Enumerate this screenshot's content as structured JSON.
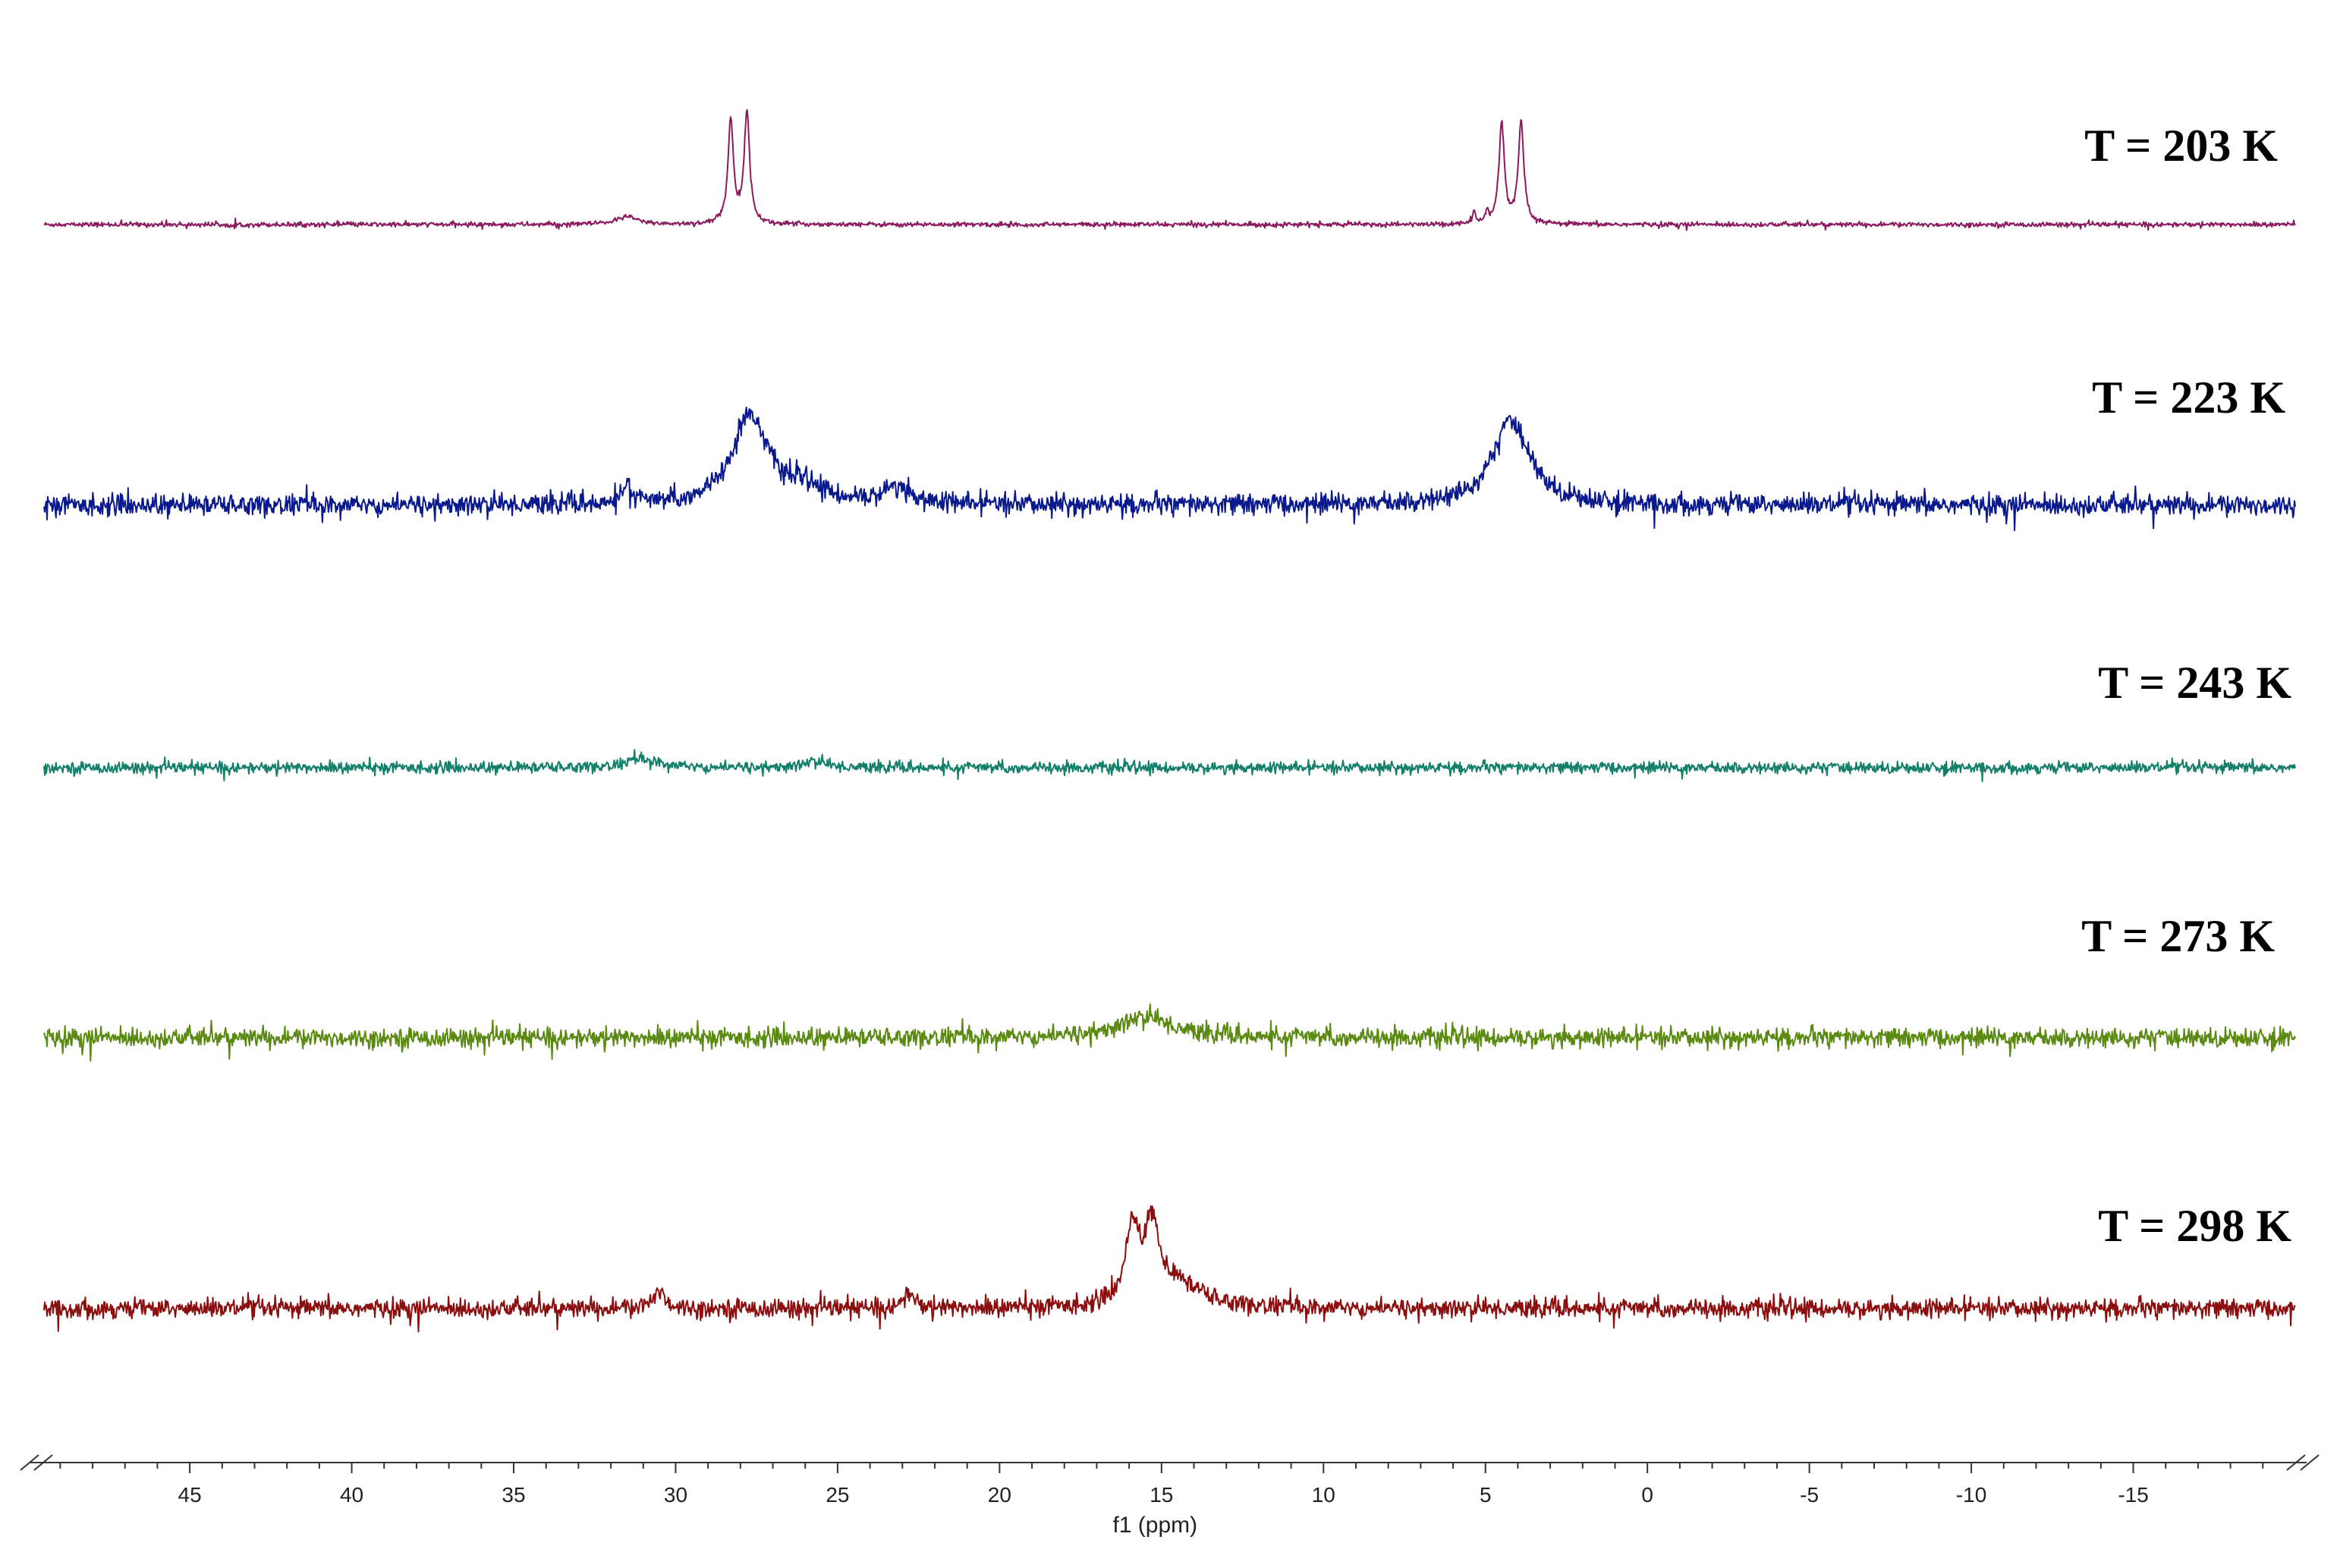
{
  "chart_data": {
    "type": "line",
    "title": "",
    "xlabel": "f1 (ppm)",
    "ylabel": "",
    "xlim": [
      49.5,
      -20
    ],
    "x_reversed": true,
    "x_ticks": [
      45,
      40,
      35,
      30,
      25,
      20,
      15,
      10,
      5,
      0,
      -5,
      -10,
      -15
    ],
    "x_tick_labels": [
      "45",
      "40",
      "35",
      "30",
      "25",
      "20",
      "15",
      "10",
      "5",
      "0",
      "-5",
      "-10",
      "-15"
    ],
    "grid": false,
    "legend": "none",
    "series": [
      {
        "name": "T = 203 K",
        "color": "#8B1A5E",
        "noise": 0.25,
        "peaks": [
          {
            "ppm": 28.3,
            "height": 11.0,
            "width": 0.1
          },
          {
            "ppm": 27.8,
            "height": 11.8,
            "width": 0.1
          },
          {
            "ppm": 31.5,
            "height": 0.8,
            "width": 0.4
          },
          {
            "ppm": 4.5,
            "height": 10.6,
            "width": 0.1
          },
          {
            "ppm": 3.9,
            "height": 10.8,
            "width": 0.1
          },
          {
            "ppm": 5.35,
            "height": 1.5,
            "width": 0.05
          },
          {
            "ppm": 4.95,
            "height": 1.2,
            "width": 0.05
          }
        ]
      },
      {
        "name": "T = 223 K",
        "color": "#0A1A8C",
        "noise": 1.1,
        "peaks": [
          {
            "ppm": 27.7,
            "height": 9.5,
            "width": 0.65
          },
          {
            "ppm": 4.2,
            "height": 8.8,
            "width": 0.7
          },
          {
            "ppm": 31.5,
            "height": 2.6,
            "width": 0.12
          },
          {
            "ppm": 23.2,
            "height": 1.8,
            "width": 0.5
          },
          {
            "ppm": 26.0,
            "height": 1.5,
            "width": 0.8
          }
        ]
      },
      {
        "name": "T = 243 K",
        "color": "#14806A",
        "noise": 0.6,
        "peaks": [
          {
            "ppm": 31.0,
            "height": 0.9,
            "width": 0.6
          },
          {
            "ppm": 25.7,
            "height": 0.7,
            "width": 0.4
          }
        ]
      },
      {
        "name": "T = 273 K",
        "color": "#5A8A12",
        "noise": 1.0,
        "peaks": [
          {
            "ppm": 15.5,
            "height": 2.2,
            "width": 1.0
          }
        ]
      },
      {
        "name": "T = 298 K",
        "color": "#8B0F0F",
        "noise": 1.0,
        "peaks": [
          {
            "ppm": 15.9,
            "height": 8.0,
            "width": 0.25
          },
          {
            "ppm": 15.3,
            "height": 8.0,
            "width": 0.25
          },
          {
            "ppm": 14.5,
            "height": 2.5,
            "width": 0.9
          },
          {
            "ppm": 30.5,
            "height": 2.0,
            "width": 0.2
          },
          {
            "ppm": 22.8,
            "height": 1.6,
            "width": 0.2
          }
        ]
      }
    ]
  }
}
